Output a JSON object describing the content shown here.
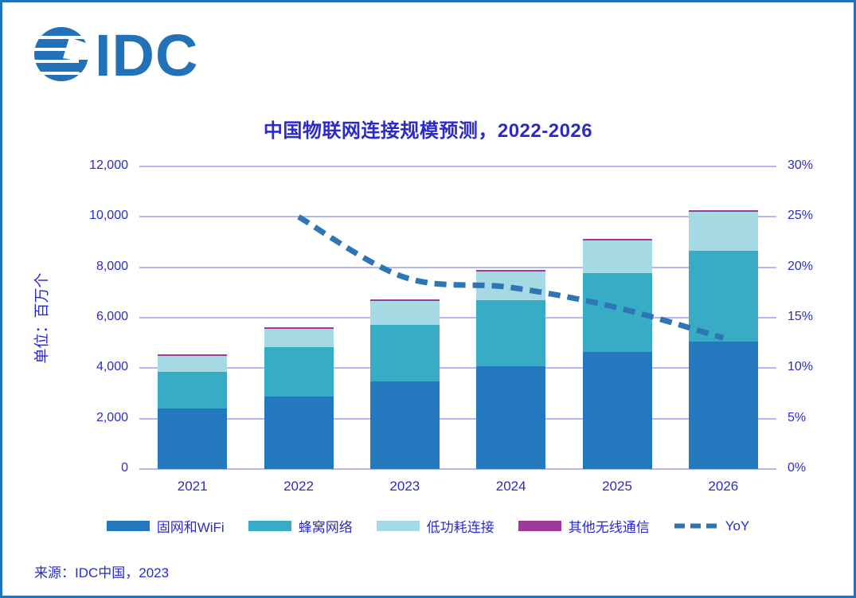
{
  "page": {
    "logo_text": "IDC",
    "source_note": "来源：IDC中国，2023"
  },
  "theme": {
    "text_blue": "#2B2BCC",
    "grid_color": "#B7B8F0",
    "border_color": "#2273B9",
    "logo_blue": "#2272B9"
  },
  "chart_data": {
    "type": "bar",
    "variant": "stacked-bars-with-yoy-line",
    "title": "中国物联网连接规模预测，2022-2026",
    "categories": [
      "2021",
      "2022",
      "2023",
      "2024",
      "2025",
      "2026"
    ],
    "series": [
      {
        "name": "固网和WiFi",
        "color": "#2478BD",
        "values": [
          2400,
          2880,
          3470,
          4060,
          4630,
          5060
        ]
      },
      {
        "name": "蜂窝网络",
        "color": "#38ACC4",
        "values": [
          1450,
          1960,
          2260,
          2640,
          3140,
          3600
        ]
      },
      {
        "name": "低功耗连接",
        "color": "#A5DAE4",
        "values": [
          620,
          730,
          945,
          1125,
          1305,
          1545
        ]
      },
      {
        "name": "其他无线通信",
        "color": "#9E3A97",
        "values": [
          30,
          30,
          25,
          25,
          25,
          25
        ]
      }
    ],
    "totals": [
      4500,
      5600,
      6700,
      7850,
      9100,
      10230
    ],
    "line": {
      "name": "YoY",
      "color": "#2E75B5",
      "style": "dashed",
      "x": [
        "2022",
        "2023",
        "2024",
        "2025",
        "2026"
      ],
      "values_pct": [
        25,
        19,
        18,
        16,
        13
      ]
    },
    "ylabel_left": "单位：百万个",
    "axis_left": {
      "min": 0,
      "max": 12000,
      "step": 2000,
      "tick_labels": [
        "0",
        "2,000",
        "4,000",
        "6,000",
        "8,000",
        "10,000",
        "12,000"
      ]
    },
    "axis_right": {
      "min": 0,
      "max": 30,
      "step": 5,
      "tick_labels": [
        "0%",
        "5%",
        "10%",
        "15%",
        "20%",
        "25%",
        "30%"
      ]
    },
    "grid": true,
    "legend_position": "bottom"
  }
}
